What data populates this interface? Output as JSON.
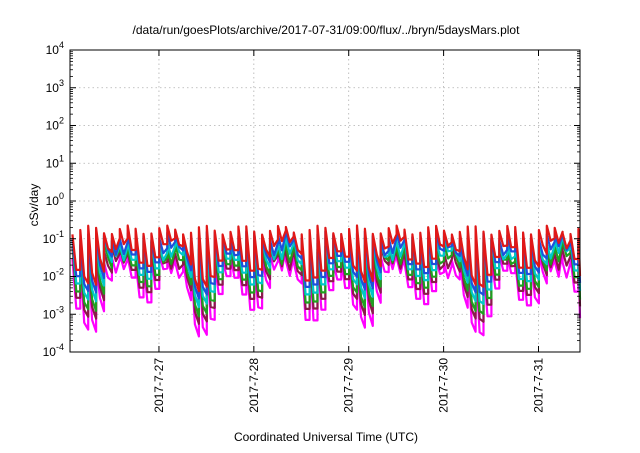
{
  "chart_data": {
    "type": "line",
    "title": "/data/run/goesPlots/archive/2017-07-31/09:00/flux/../bryn/5daysMars.plot",
    "xlabel": "Coordinated Universal Time (UTC)",
    "ylabel": "cSv/day",
    "y_scale": "log",
    "ylim": [
      0.0001,
      10000
    ],
    "y_ticks": [
      {
        "value": 0.0001,
        "base": "10",
        "exp": "-4"
      },
      {
        "value": 0.001,
        "base": "10",
        "exp": "-3"
      },
      {
        "value": 0.01,
        "base": "10",
        "exp": "-2"
      },
      {
        "value": 0.1,
        "base": "10",
        "exp": "-1"
      },
      {
        "value": 1,
        "base": "10",
        "exp": "0"
      },
      {
        "value": 10,
        "base": "10",
        "exp": "1"
      },
      {
        "value": 100,
        "base": "10",
        "exp": "2"
      },
      {
        "value": 1000,
        "base": "10",
        "exp": "3"
      },
      {
        "value": 10000,
        "base": "10",
        "exp": "4"
      }
    ],
    "xlim": [
      "2017-07-26T01:30",
      "2017-07-31T10:30"
    ],
    "x_ticks": [
      {
        "value": "2017-07-27T00:00",
        "label": "2017-7-27"
      },
      {
        "value": "2017-07-28T00:00",
        "label": "2017-7-28"
      },
      {
        "value": "2017-07-29T00:00",
        "label": "2017-7-29"
      },
      {
        "value": "2017-07-30T00:00",
        "label": "2017-7-30"
      },
      {
        "value": "2017-07-31T00:00",
        "label": "2017-7-31"
      }
    ],
    "grid": true,
    "legend": "none",
    "sawtooth_period_hours": 2.0,
    "series": [
      {
        "color": "#ff00ff",
        "peak": 0.03,
        "trough": 0.001
      },
      {
        "color": "#8b1a4a",
        "peak": 0.05,
        "trough": 0.002
      },
      {
        "color": "#1fa01f",
        "peak": 0.07,
        "trough": 0.003
      },
      {
        "color": "#00c8c8",
        "peak": 0.09,
        "trough": 0.005
      },
      {
        "color": "#1e50dc",
        "peak": 0.12,
        "trough": 0.008
      },
      {
        "color": "#e01818",
        "peak": 0.17,
        "trough": 0.012
      }
    ]
  }
}
